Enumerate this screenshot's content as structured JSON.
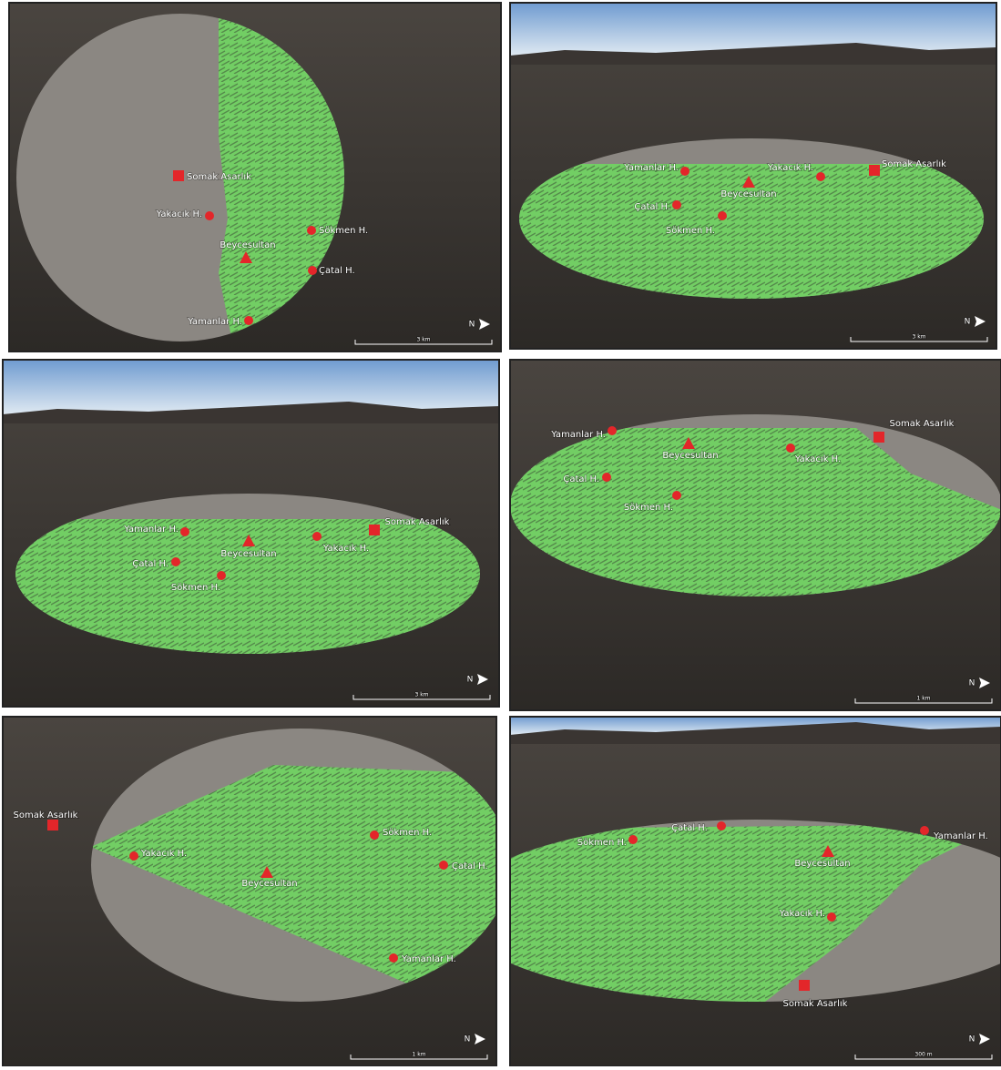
{
  "panels": [
    {
      "scale_label": "3 km",
      "north": "N",
      "sites": [
        {
          "label": "Somak Asarlık",
          "marker": "square"
        },
        {
          "label": "Yakacık H.",
          "marker": "circle"
        },
        {
          "label": "Sökmen H.",
          "marker": "circle"
        },
        {
          "label": "Beycesultan",
          "marker": "triangle"
        },
        {
          "label": "Çatal H.",
          "marker": "circle"
        },
        {
          "label": "Yamanlar H.",
          "marker": "circle"
        }
      ]
    },
    {
      "scale_label": "3 km",
      "north": "N",
      "sites": [
        {
          "label": "Yamanlar H.",
          "marker": "circle"
        },
        {
          "label": "Beycesultan",
          "marker": "triangle"
        },
        {
          "label": "Yakacık H.",
          "marker": "circle"
        },
        {
          "label": "Somak Asarlık",
          "marker": "square"
        },
        {
          "label": "Çatal H.",
          "marker": "circle"
        },
        {
          "label": "Sökmen H.",
          "marker": "circle"
        }
      ]
    },
    {
      "scale_label": "3 km",
      "north": "N",
      "sites": [
        {
          "label": "Yamanlar H.",
          "marker": "circle"
        },
        {
          "label": "Beycesultan",
          "marker": "triangle"
        },
        {
          "label": "Yakacık H.",
          "marker": "circle"
        },
        {
          "label": "Somak Asarlık",
          "marker": "square"
        },
        {
          "label": "Çatal H.",
          "marker": "circle"
        },
        {
          "label": "Sökmen H.",
          "marker": "circle"
        }
      ]
    },
    {
      "scale_label": "1 km",
      "north": "N",
      "sites": [
        {
          "label": "Yamanlar H.",
          "marker": "circle"
        },
        {
          "label": "Beycesultan",
          "marker": "triangle"
        },
        {
          "label": "Yakacık H.",
          "marker": "circle"
        },
        {
          "label": "Somak Asarlık",
          "marker": "square"
        },
        {
          "label": "Çatal H.",
          "marker": "circle"
        },
        {
          "label": "Sökmen H.",
          "marker": "circle"
        }
      ]
    },
    {
      "scale_label": "1 km",
      "north": "N",
      "sites": [
        {
          "label": "Somak Asarlık",
          "marker": "square"
        },
        {
          "label": "Yakacık H.",
          "marker": "circle"
        },
        {
          "label": "Sökmen H.",
          "marker": "circle"
        },
        {
          "label": "Beycesultan",
          "marker": "triangle"
        },
        {
          "label": "Çatal H.",
          "marker": "circle"
        },
        {
          "label": "Yamanlar H.",
          "marker": "circle"
        }
      ]
    },
    {
      "scale_label": "300 m",
      "north": "N",
      "sites": [
        {
          "label": "Sökmen H.",
          "marker": "circle"
        },
        {
          "label": "Çatal H.",
          "marker": "circle"
        },
        {
          "label": "Yamanlar H.",
          "marker": "circle"
        },
        {
          "label": "Beycesultan",
          "marker": "triangle"
        },
        {
          "label": "Yakacık H.",
          "marker": "circle"
        },
        {
          "label": "Somak Asarlık",
          "marker": "square"
        }
      ]
    }
  ]
}
